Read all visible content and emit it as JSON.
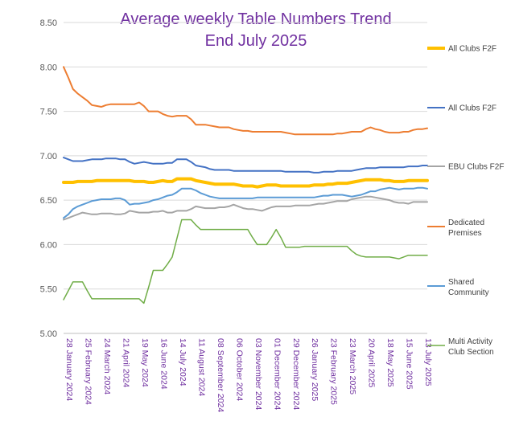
{
  "chart_data": {
    "type": "line",
    "title_lines": [
      "Average weekly Table Numbers Trend",
      "End July 2025"
    ],
    "xlabel": "",
    "ylabel": "",
    "ylim": [
      5.0,
      8.5
    ],
    "y_ticks": [
      "5.00",
      "5.50",
      "6.00",
      "6.50",
      "7.00",
      "7.50",
      "8.00",
      "8.50"
    ],
    "grid": true,
    "legend_position": "right",
    "x": [
      "28 January 2024",
      "04 February 2024",
      "11 February 2024",
      "18 February 2024",
      "25 February 2024",
      "03 March 2024",
      "10 March 2024",
      "17 March 2024",
      "24 March 2024",
      "31 March 2024",
      "07 April 2024",
      "14 April 2024",
      "21 April 2024",
      "28 April 2024",
      "05 May 2024",
      "12 May 2024",
      "19 May 2024",
      "26 May 2024",
      "02 June 2024",
      "09 June 2024",
      "16 June 2024",
      "23 June 2024",
      "30 June 2024",
      "07 July 2024",
      "14 July 2024",
      "21 July 2024",
      "28 July 2024",
      "04 August 2024",
      "11 August 2024",
      "18 August 2024",
      "25 August 2024",
      "01 September 2024",
      "08 September 2024",
      "15 September 2024",
      "22 September 2024",
      "29 September 2024",
      "06 October 2024",
      "13 October 2024",
      "20 October 2024",
      "27 October 2024",
      "03 November 2024",
      "10 November 2024",
      "17 November 2024",
      "24 November 2024",
      "01 December 2024",
      "08 December 2024",
      "15 December 2024",
      "22 December 2024",
      "29 December 2024",
      "05 January 2025",
      "12 January 2025",
      "19 January 2025",
      "26 January 2025",
      "02 February 2025",
      "09 February 2025",
      "16 February 2025",
      "23 February 2025",
      "02 March 2025",
      "09 March 2025",
      "16 March 2025",
      "23 March 2025",
      "30 March 2025",
      "06 April 2025",
      "13 April 2025",
      "20 April 2025",
      "27 April 2025",
      "04 May 2025",
      "11 May 2025",
      "18 May 2025",
      "25 May 2025",
      "01 June 2025",
      "08 June 2025",
      "15 June 2025",
      "22 June 2025",
      "29 June 2025",
      "06 July 2025",
      "13 July 2025",
      "20 July 2025"
    ],
    "x_tick_labels": [
      "28 January 2024",
      "25 February 2024",
      "24 March 2024",
      "21 April 2024",
      "19 May 2024",
      "16 June 2024",
      "14 July 2024",
      "11 August 2024",
      "08 September 2024",
      "06 October 2024",
      "03 November 2024",
      "01 December 2024",
      "29 December 2024",
      "26 January 2025",
      "23 February 2025",
      "23 March 2025",
      "20 April 2025",
      "18 May 2025",
      "15 June 2025",
      "13 July 2025"
    ],
    "series": [
      {
        "name": "All Clubs F2F",
        "color": "#ffc000",
        "width": 4,
        "values": [
          6.7,
          6.7,
          6.7,
          6.71,
          6.71,
          6.71,
          6.71,
          6.72,
          6.72,
          6.72,
          6.72,
          6.72,
          6.72,
          6.72,
          6.72,
          6.71,
          6.71,
          6.71,
          6.7,
          6.7,
          6.71,
          6.72,
          6.71,
          6.71,
          6.74,
          6.74,
          6.74,
          6.74,
          6.72,
          6.71,
          6.7,
          6.69,
          6.68,
          6.68,
          6.68,
          6.68,
          6.68,
          6.67,
          6.66,
          6.66,
          6.66,
          6.65,
          6.66,
          6.67,
          6.67,
          6.67,
          6.66,
          6.66,
          6.66,
          6.66,
          6.66,
          6.66,
          6.66,
          6.67,
          6.67,
          6.67,
          6.68,
          6.68,
          6.69,
          6.69,
          6.69,
          6.7,
          6.71,
          6.72,
          6.73,
          6.73,
          6.73,
          6.73,
          6.72,
          6.72,
          6.71,
          6.71,
          6.71,
          6.72,
          6.72,
          6.72,
          6.72,
          6.72
        ]
      },
      {
        "name": "All Clubs F2F",
        "color": "#4472c4",
        "width": 2,
        "values": [
          6.98,
          6.96,
          6.94,
          6.94,
          6.94,
          6.95,
          6.96,
          6.96,
          6.96,
          6.97,
          6.97,
          6.97,
          6.96,
          6.96,
          6.93,
          6.91,
          6.92,
          6.93,
          6.92,
          6.91,
          6.91,
          6.91,
          6.92,
          6.92,
          6.96,
          6.96,
          6.96,
          6.93,
          6.89,
          6.88,
          6.87,
          6.85,
          6.84,
          6.84,
          6.84,
          6.84,
          6.83,
          6.83,
          6.83,
          6.83,
          6.83,
          6.83,
          6.83,
          6.83,
          6.83,
          6.83,
          6.83,
          6.82,
          6.82,
          6.82,
          6.82,
          6.82,
          6.82,
          6.81,
          6.81,
          6.82,
          6.82,
          6.82,
          6.83,
          6.83,
          6.83,
          6.83,
          6.84,
          6.85,
          6.86,
          6.86,
          6.86,
          6.87,
          6.87,
          6.87,
          6.87,
          6.87,
          6.87,
          6.88,
          6.88,
          6.88,
          6.89,
          6.89
        ]
      },
      {
        "name": "EBU Clubs F2F",
        "color": "#a5a5a5",
        "width": 2,
        "values": [
          6.28,
          6.3,
          6.32,
          6.34,
          6.36,
          6.35,
          6.34,
          6.34,
          6.35,
          6.35,
          6.35,
          6.34,
          6.34,
          6.35,
          6.38,
          6.37,
          6.36,
          6.36,
          6.36,
          6.37,
          6.37,
          6.38,
          6.36,
          6.36,
          6.38,
          6.38,
          6.38,
          6.4,
          6.43,
          6.42,
          6.41,
          6.41,
          6.41,
          6.42,
          6.42,
          6.43,
          6.45,
          6.43,
          6.41,
          6.4,
          6.4,
          6.39,
          6.38,
          6.4,
          6.42,
          6.43,
          6.43,
          6.43,
          6.43,
          6.44,
          6.44,
          6.44,
          6.44,
          6.45,
          6.46,
          6.46,
          6.47,
          6.48,
          6.49,
          6.49,
          6.49,
          6.51,
          6.52,
          6.53,
          6.54,
          6.54,
          6.53,
          6.52,
          6.51,
          6.5,
          6.48,
          6.47,
          6.47,
          6.46,
          6.48,
          6.48,
          6.48,
          6.48
        ]
      },
      {
        "name": "Dedicated Premises",
        "color": "#ed7d31",
        "width": 2,
        "values": [
          8.0,
          7.88,
          7.75,
          7.7,
          7.66,
          7.62,
          7.57,
          7.56,
          7.55,
          7.57,
          7.58,
          7.58,
          7.58,
          7.58,
          7.58,
          7.58,
          7.6,
          7.56,
          7.5,
          7.5,
          7.5,
          7.47,
          7.45,
          7.44,
          7.45,
          7.45,
          7.45,
          7.41,
          7.35,
          7.35,
          7.35,
          7.34,
          7.33,
          7.32,
          7.32,
          7.32,
          7.3,
          7.29,
          7.28,
          7.28,
          7.27,
          7.27,
          7.27,
          7.27,
          7.27,
          7.27,
          7.27,
          7.26,
          7.25,
          7.24,
          7.24,
          7.24,
          7.24,
          7.24,
          7.24,
          7.24,
          7.24,
          7.24,
          7.25,
          7.25,
          7.26,
          7.27,
          7.27,
          7.27,
          7.3,
          7.32,
          7.3,
          7.29,
          7.27,
          7.26,
          7.26,
          7.26,
          7.27,
          7.27,
          7.29,
          7.3,
          7.3,
          7.31
        ]
      },
      {
        "name": "Shared Community",
        "color": "#5b9bd5",
        "width": 2,
        "values": [
          6.3,
          6.34,
          6.4,
          6.43,
          6.45,
          6.47,
          6.49,
          6.5,
          6.51,
          6.51,
          6.51,
          6.52,
          6.52,
          6.5,
          6.45,
          6.46,
          6.46,
          6.47,
          6.48,
          6.5,
          6.51,
          6.53,
          6.55,
          6.56,
          6.59,
          6.63,
          6.63,
          6.63,
          6.61,
          6.58,
          6.56,
          6.54,
          6.53,
          6.52,
          6.52,
          6.52,
          6.52,
          6.52,
          6.52,
          6.52,
          6.52,
          6.53,
          6.53,
          6.53,
          6.53,
          6.53,
          6.53,
          6.53,
          6.53,
          6.53,
          6.53,
          6.53,
          6.53,
          6.53,
          6.54,
          6.55,
          6.55,
          6.56,
          6.56,
          6.56,
          6.55,
          6.54,
          6.55,
          6.56,
          6.58,
          6.6,
          6.6,
          6.62,
          6.63,
          6.64,
          6.63,
          6.62,
          6.63,
          6.63,
          6.63,
          6.64,
          6.64,
          6.63
        ]
      },
      {
        "name": "Multi Activity Club Section",
        "color": "#70ad47",
        "width": 1.5,
        "values": [
          5.38,
          5.48,
          5.58,
          5.58,
          5.58,
          5.48,
          5.39,
          5.39,
          5.39,
          5.39,
          5.39,
          5.39,
          5.39,
          5.39,
          5.39,
          5.39,
          5.39,
          5.34,
          5.52,
          5.71,
          5.71,
          5.71,
          5.78,
          5.86,
          6.07,
          6.28,
          6.28,
          6.28,
          6.22,
          6.17,
          6.17,
          6.17,
          6.17,
          6.17,
          6.17,
          6.17,
          6.17,
          6.17,
          6.17,
          6.17,
          6.08,
          6.0,
          6.0,
          6.0,
          6.08,
          6.17,
          6.08,
          5.97,
          5.97,
          5.97,
          5.97,
          5.98,
          5.98,
          5.98,
          5.98,
          5.98,
          5.98,
          5.98,
          5.98,
          5.98,
          5.98,
          5.93,
          5.89,
          5.87,
          5.86,
          5.86,
          5.86,
          5.86,
          5.86,
          5.86,
          5.85,
          5.84,
          5.86,
          5.88,
          5.88,
          5.88,
          5.88,
          5.88
        ]
      }
    ]
  }
}
